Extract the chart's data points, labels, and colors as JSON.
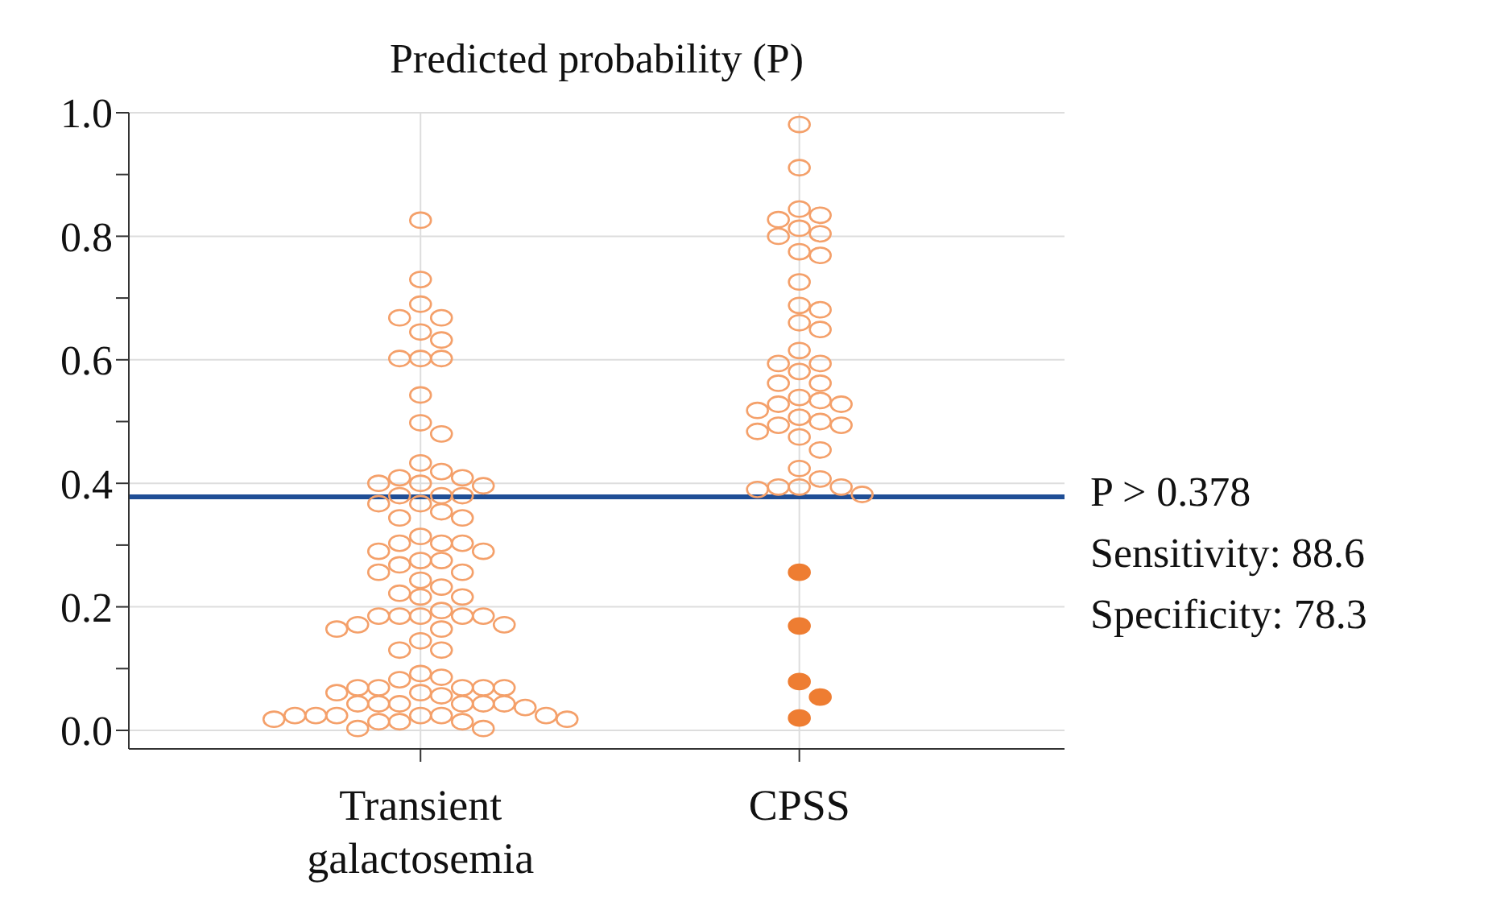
{
  "chart_data": {
    "type": "scatter",
    "title": "Predicted probability (P)",
    "categories": [
      "Transient galactosemia",
      "CPSS"
    ],
    "series": [
      {
        "color": "#f4a06a",
        "marker": "circle-open",
        "x": [
          "Transient galactosemia",
          "Transient galactosemia",
          "Transient galactosemia",
          "Transient galactosemia",
          "Transient galactosemia",
          "Transient galactosemia",
          "Transient galactosemia",
          "Transient galactosemia",
          "Transient galactosemia",
          "Transient galactosemia",
          "Transient galactosemia",
          "Transient galactosemia",
          "Transient galactosemia",
          "Transient galactosemia",
          "Transient galactosemia",
          "Transient galactosemia",
          "Transient galactosemia",
          "Transient galactosemia",
          "Transient galactosemia",
          "Transient galactosemia",
          "Transient galactosemia",
          "Transient galactosemia",
          "Transient galactosemia",
          "Transient galactosemia",
          "Transient galactosemia",
          "Transient galactosemia",
          "Transient galactosemia",
          "Transient galactosemia",
          "Transient galactosemia",
          "Transient galactosemia",
          "Transient galactosemia",
          "Transient galactosemia",
          "Transient galactosemia",
          "Transient galactosemia",
          "Transient galactosemia",
          "Transient galactosemia",
          "Transient galactosemia",
          "Transient galactosemia",
          "Transient galactosemia",
          "Transient galactosemia",
          "Transient galactosemia",
          "Transient galactosemia",
          "Transient galactosemia",
          "Transient galactosemia",
          "Transient galactosemia",
          "Transient galactosemia",
          "Transient galactosemia",
          "Transient galactosemia",
          "Transient galactosemia",
          "Transient galactosemia",
          "Transient galactosemia",
          "Transient galactosemia",
          "Transient galactosemia",
          "Transient galactosemia",
          "Transient galactosemia",
          "Transient galactosemia",
          "Transient galactosemia",
          "Transient galactosemia",
          "Transient galactosemia",
          "Transient galactosemia",
          "Transient galactosemia",
          "Transient galactosemia",
          "Transient galactosemia",
          "Transient galactosemia",
          "Transient galactosemia",
          "Transient galactosemia",
          "Transient galactosemia",
          "Transient galactosemia",
          "Transient galactosemia",
          "Transient galactosemia",
          "Transient galactosemia",
          "Transient galactosemia",
          "Transient galactosemia",
          "Transient galactosemia",
          "Transient galactosemia",
          "Transient galactosemia",
          "Transient galactosemia",
          "Transient galactosemia",
          "Transient galactosemia",
          "Transient galactosemia",
          "Transient galactosemia",
          "Transient galactosemia",
          "Transient galactosemia",
          "Transient galactosemia",
          "Transient galactosemia",
          "Transient galactosemia",
          "Transient galactosemia",
          "Transient galactosemia"
        ],
        "values": [
          0.826,
          0.73,
          0.69,
          0.668,
          0.668,
          0.645,
          0.632,
          0.602,
          0.602,
          0.602,
          0.543,
          0.498,
          0.48,
          0.433,
          0.419,
          0.409,
          0.409,
          0.4,
          0.4,
          0.396,
          0.38,
          0.38,
          0.38,
          0.367,
          0.367,
          0.354,
          0.344,
          0.344,
          0.314,
          0.303,
          0.303,
          0.303,
          0.29,
          0.29,
          0.275,
          0.275,
          0.268,
          0.256,
          0.256,
          0.243,
          0.232,
          0.222,
          0.216,
          0.216,
          0.194,
          0.185,
          0.185,
          0.185,
          0.185,
          0.185,
          0.171,
          0.171,
          0.164,
          0.164,
          0.145,
          0.13,
          0.13,
          0.092,
          0.086,
          0.082,
          0.069,
          0.069,
          0.069,
          0.069,
          0.069,
          0.061,
          0.061,
          0.056,
          0.043,
          0.043,
          0.043,
          0.043,
          0.043,
          0.043,
          0.037,
          0.024,
          0.024,
          0.024,
          0.024,
          0.024,
          0.024,
          0.018,
          0.018,
          0.014,
          0.014,
          0.014,
          0.003,
          0.003
        ]
      },
      {
        "color": "#f4a06a",
        "marker": "circle-open",
        "x": [
          "CPSS",
          "CPSS",
          "CPSS",
          "CPSS",
          "CPSS",
          "CPSS",
          "CPSS",
          "CPSS",
          "CPSS",
          "CPSS",
          "CPSS",
          "CPSS",
          "CPSS",
          "CPSS",
          "CPSS",
          "CPSS",
          "CPSS",
          "CPSS",
          "CPSS",
          "CPSS",
          "CPSS",
          "CPSS",
          "CPSS",
          "CPSS",
          "CPSS",
          "CPSS",
          "CPSS",
          "CPSS",
          "CPSS",
          "CPSS",
          "CPSS",
          "CPSS",
          "CPSS",
          "CPSS",
          "CPSS",
          "CPSS",
          "CPSS",
          "CPSS",
          "CPSS",
          "CPSS"
        ],
        "values": [
          0.981,
          0.911,
          0.844,
          0.834,
          0.827,
          0.813,
          0.804,
          0.8,
          0.775,
          0.769,
          0.726,
          0.688,
          0.681,
          0.66,
          0.649,
          0.615,
          0.594,
          0.594,
          0.581,
          0.562,
          0.562,
          0.539,
          0.534,
          0.528,
          0.528,
          0.518,
          0.507,
          0.5,
          0.494,
          0.494,
          0.484,
          0.475,
          0.454,
          0.424,
          0.407,
          0.394,
          0.394,
          0.394,
          0.39,
          0.382
        ]
      },
      {
        "color": "#ee7d32",
        "marker": "circle",
        "x": [
          "CPSS",
          "CPSS",
          "CPSS",
          "CPSS",
          "CPSS"
        ],
        "values": [
          0.256,
          0.169,
          0.079,
          0.054,
          0.02
        ]
      }
    ],
    "ylim": [
      -0.03,
      1.0
    ],
    "yticks": [
      {
        "value": 0,
        "label": "0.0"
      },
      {
        "value": 0.1,
        "label": null
      },
      {
        "value": 0.2,
        "label": "0.2"
      },
      {
        "value": 0.3,
        "label": null
      },
      {
        "value": 0.4,
        "label": "0.4"
      },
      {
        "value": 0.5,
        "label": null
      },
      {
        "value": 0.6,
        "label": "0.6"
      },
      {
        "value": 0.7,
        "label": null
      },
      {
        "value": 0.8,
        "label": "0.8"
      },
      {
        "value": 0.9,
        "label": null
      },
      {
        "value": 1,
        "label": "1.0"
      }
    ],
    "grid": true,
    "ref_lines": [
      {
        "axis": "y",
        "value": 0.378,
        "label": "P > 0.378",
        "color": "#1f4e96"
      }
    ],
    "annotations": [
      "Sensitivity: 88.6",
      "Specificity: 78.3"
    ]
  }
}
